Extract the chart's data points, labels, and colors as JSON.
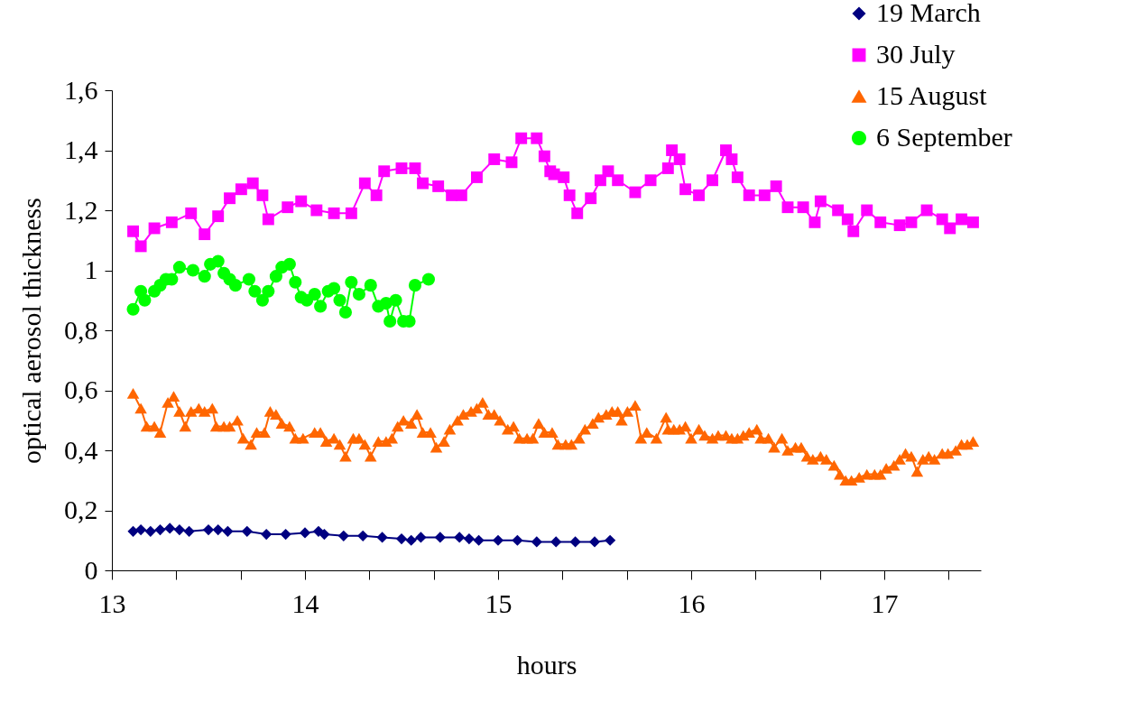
{
  "chart_data": {
    "type": "line",
    "xlabel": "hours",
    "ylabel": "optical aerosol thickness",
    "xlim": [
      13,
      17.5
    ],
    "ylim": [
      0,
      1.6
    ],
    "xticks": [
      13,
      {
        "value": 13.333,
        "label": null
      },
      {
        "value": 13.667,
        "label": null
      },
      14,
      {
        "value": 14.333,
        "label": null
      },
      {
        "value": 14.667,
        "label": null
      },
      15,
      {
        "value": 15.333,
        "label": null
      },
      {
        "value": 15.667,
        "label": null
      },
      16,
      {
        "value": 16.333,
        "label": null
      },
      {
        "value": 16.667,
        "label": null
      },
      17,
      {
        "value": 17.333,
        "label": null
      }
    ],
    "yticks": [
      0,
      {
        "value": 0.2,
        "label": "0,2"
      },
      {
        "value": 0.4,
        "label": "0,4"
      },
      {
        "value": 0.6,
        "label": "0,6"
      },
      {
        "value": 0.8,
        "label": "0,8"
      },
      1,
      {
        "value": 1.2,
        "label": "1,2"
      },
      {
        "value": 1.4,
        "label": "1,4"
      },
      {
        "value": 1.6,
        "label": "1,6"
      }
    ],
    "grid": false,
    "legend": "top right",
    "line_style": "solid",
    "series": [
      {
        "name": "19 March",
        "color": "#000080",
        "marker": "diamond",
        "x": [
          13.11,
          13.15,
          13.2,
          13.25,
          13.3,
          13.35,
          13.4,
          13.5,
          13.55,
          13.6,
          13.7,
          13.8,
          13.9,
          14,
          14.07,
          14.1,
          14.2,
          14.3,
          14.4,
          14.5,
          14.55,
          14.6,
          14.7,
          14.8,
          14.85,
          14.9,
          15,
          15.1,
          15.2,
          15.3,
          15.4,
          15.5,
          15.58
        ],
        "values": [
          0.13,
          0.135,
          0.13,
          0.135,
          0.14,
          0.135,
          0.13,
          0.135,
          0.135,
          0.13,
          0.13,
          0.12,
          0.12,
          0.125,
          0.13,
          0.12,
          0.115,
          0.115,
          0.11,
          0.105,
          0.1,
          0.11,
          0.11,
          0.11,
          0.105,
          0.1,
          0.1,
          0.1,
          0.095,
          0.095,
          0.095,
          0.095,
          0.1
        ]
      },
      {
        "name": "30 July",
        "color": "#ff00ff",
        "marker": "square",
        "x": [
          13.11,
          13.15,
          13.22,
          13.31,
          13.41,
          13.48,
          13.55,
          13.61,
          13.67,
          13.73,
          13.78,
          13.81,
          13.91,
          13.98,
          14.06,
          14.15,
          14.24,
          14.31,
          14.37,
          14.41,
          14.5,
          14.57,
          14.61,
          14.69,
          14.76,
          14.81,
          14.89,
          14.98,
          15.07,
          15.12,
          15.2,
          15.24,
          15.27,
          15.29,
          15.34,
          15.37,
          15.41,
          15.48,
          15.53,
          15.57,
          15.62,
          15.71,
          15.79,
          15.88,
          15.9,
          15.94,
          15.97,
          16.04,
          16.11,
          16.18,
          16.21,
          16.24,
          16.3,
          16.38,
          16.44,
          16.5,
          16.58,
          16.64,
          16.67,
          16.76,
          16.81,
          16.84,
          16.91,
          16.98,
          17.08,
          17.14,
          17.22,
          17.3,
          17.34,
          17.4,
          17.46
        ],
        "values": [
          1.13,
          1.08,
          1.14,
          1.16,
          1.19,
          1.12,
          1.18,
          1.24,
          1.27,
          1.29,
          1.25,
          1.17,
          1.21,
          1.23,
          1.2,
          1.19,
          1.19,
          1.29,
          1.25,
          1.33,
          1.34,
          1.34,
          1.29,
          1.28,
          1.25,
          1.25,
          1.31,
          1.37,
          1.36,
          1.44,
          1.44,
          1.38,
          1.33,
          1.32,
          1.31,
          1.25,
          1.19,
          1.24,
          1.3,
          1.33,
          1.3,
          1.26,
          1.3,
          1.34,
          1.4,
          1.37,
          1.27,
          1.25,
          1.3,
          1.4,
          1.37,
          1.31,
          1.25,
          1.25,
          1.28,
          1.21,
          1.21,
          1.16,
          1.23,
          1.2,
          1.17,
          1.13,
          1.2,
          1.16,
          1.15,
          1.16,
          1.2,
          1.17,
          1.14,
          1.17,
          1.16
        ]
      },
      {
        "name": "15 August",
        "color": "#ff6600",
        "marker": "triangle",
        "x": [
          13.11,
          13.15,
          13.18,
          13.22,
          13.25,
          13.29,
          13.32,
          13.35,
          13.38,
          13.41,
          13.45,
          13.48,
          13.52,
          13.54,
          13.58,
          13.61,
          13.65,
          13.68,
          13.72,
          13.75,
          13.79,
          13.82,
          13.85,
          13.88,
          13.92,
          13.95,
          13.99,
          14.05,
          14.08,
          14.11,
          14.15,
          14.18,
          14.21,
          14.25,
          14.28,
          14.31,
          14.34,
          14.38,
          14.42,
          14.45,
          14.48,
          14.51,
          14.55,
          14.58,
          14.61,
          14.65,
          14.68,
          14.72,
          14.75,
          14.79,
          14.82,
          14.86,
          14.89,
          14.92,
          14.95,
          14.98,
          15.01,
          15.05,
          15.08,
          15.11,
          15.15,
          15.18,
          15.21,
          15.24,
          15.28,
          15.31,
          15.35,
          15.38,
          15.42,
          15.45,
          15.49,
          15.52,
          15.56,
          15.59,
          15.62,
          15.64,
          15.67,
          15.71,
          15.74,
          15.77,
          15.82,
          15.87,
          15.88,
          15.91,
          15.94,
          15.97,
          16,
          16.04,
          16.07,
          16.11,
          16.14,
          16.18,
          16.21,
          16.24,
          16.27,
          16.3,
          16.34,
          16.36,
          16.4,
          16.43,
          16.47,
          16.5,
          16.54,
          16.57,
          16.6,
          16.63,
          16.67,
          16.7,
          16.74,
          16.77,
          16.8,
          16.83,
          16.87,
          16.91,
          16.95,
          16.98,
          17.01,
          17.05,
          17.08,
          17.11,
          17.14,
          17.17,
          17.2,
          17.23,
          17.26,
          17.3,
          17.33,
          17.37,
          17.4,
          17.43,
          17.46
        ],
        "values": [
          0.59,
          0.54,
          0.48,
          0.48,
          0.46,
          0.56,
          0.58,
          0.53,
          0.48,
          0.53,
          0.54,
          0.53,
          0.54,
          0.48,
          0.48,
          0.48,
          0.5,
          0.44,
          0.42,
          0.46,
          0.46,
          0.53,
          0.52,
          0.49,
          0.48,
          0.44,
          0.44,
          0.46,
          0.46,
          0.43,
          0.44,
          0.42,
          0.38,
          0.44,
          0.44,
          0.42,
          0.38,
          0.43,
          0.43,
          0.44,
          0.48,
          0.5,
          0.49,
          0.52,
          0.46,
          0.46,
          0.41,
          0.43,
          0.47,
          0.5,
          0.52,
          0.53,
          0.54,
          0.56,
          0.52,
          0.52,
          0.5,
          0.47,
          0.48,
          0.44,
          0.44,
          0.44,
          0.49,
          0.46,
          0.46,
          0.42,
          0.42,
          0.42,
          0.44,
          0.47,
          0.49,
          0.51,
          0.52,
          0.53,
          0.53,
          0.5,
          0.53,
          0.55,
          0.44,
          0.46,
          0.44,
          0.51,
          0.47,
          0.47,
          0.47,
          0.48,
          0.44,
          0.47,
          0.45,
          0.44,
          0.45,
          0.45,
          0.44,
          0.44,
          0.45,
          0.46,
          0.47,
          0.44,
          0.44,
          0.41,
          0.44,
          0.4,
          0.41,
          0.41,
          0.38,
          0.37,
          0.38,
          0.37,
          0.35,
          0.32,
          0.3,
          0.3,
          0.31,
          0.32,
          0.32,
          0.32,
          0.34,
          0.35,
          0.37,
          0.39,
          0.38,
          0.33,
          0.37,
          0.38,
          0.37,
          0.39,
          0.39,
          0.4,
          0.42,
          0.42,
          0.43
        ]
      },
      {
        "name": "6 September",
        "color": "#00ff00",
        "marker": "circle",
        "x": [
          13.11,
          13.15,
          13.17,
          13.22,
          13.25,
          13.28,
          13.31,
          13.35,
          13.42,
          13.48,
          13.51,
          13.55,
          13.58,
          13.61,
          13.64,
          13.71,
          13.74,
          13.78,
          13.81,
          13.85,
          13.88,
          13.92,
          13.95,
          13.98,
          14.01,
          14.05,
          14.08,
          14.12,
          14.15,
          14.18,
          14.21,
          14.24,
          14.28,
          14.34,
          14.38,
          14.42,
          14.44,
          14.47,
          14.51,
          14.54,
          14.57,
          14.64
        ],
        "values": [
          0.87,
          0.93,
          0.9,
          0.93,
          0.95,
          0.97,
          0.97,
          1.01,
          1,
          0.98,
          1.02,
          1.03,
          0.99,
          0.97,
          0.95,
          0.97,
          0.93,
          0.9,
          0.93,
          0.98,
          1.01,
          1.02,
          0.96,
          0.91,
          0.9,
          0.92,
          0.88,
          0.93,
          0.94,
          0.9,
          0.86,
          0.96,
          0.92,
          0.95,
          0.88,
          0.89,
          0.83,
          0.9,
          0.83,
          0.83,
          0.95,
          0.97
        ]
      }
    ]
  }
}
